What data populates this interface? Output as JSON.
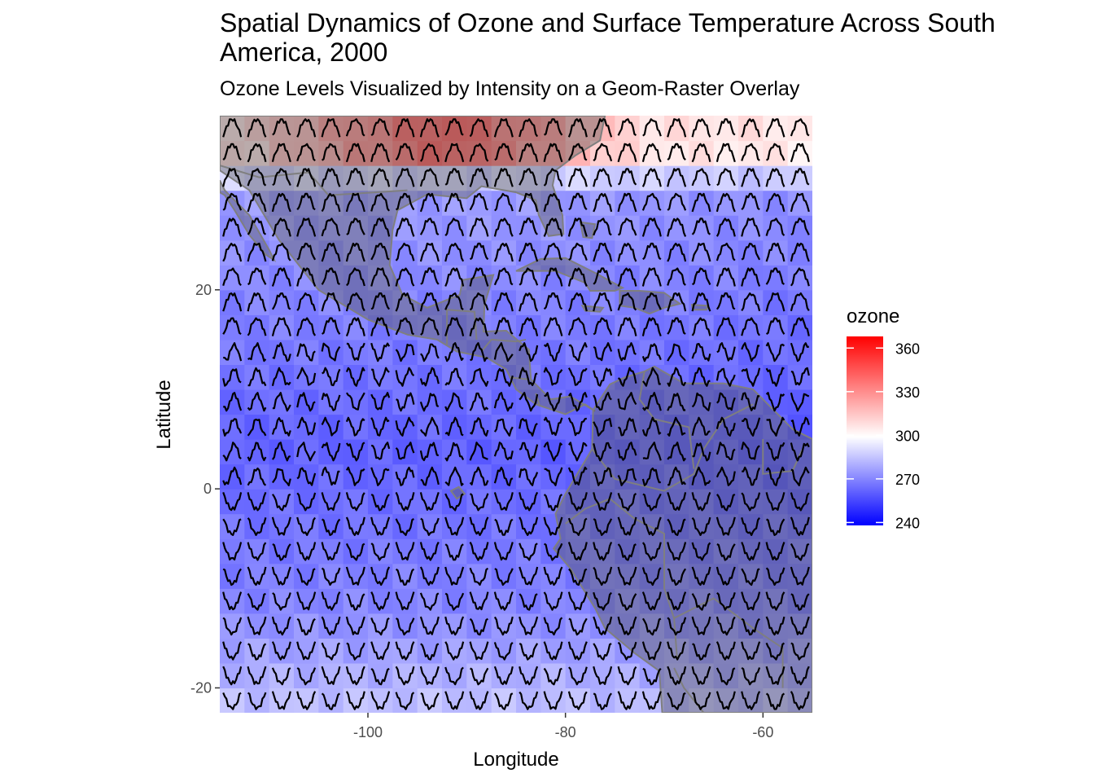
{
  "chart_data": {
    "type": "heatmap",
    "title": "Spatial Dynamics of Ozone and Surface Temperature Across South America, 2000",
    "subtitle": "Ozone Levels Visualized by Intensity on a Geom-Raster Overlay",
    "xlabel": "Longitude",
    "ylabel": "Latitude",
    "xlim": [
      -115,
      -55
    ],
    "ylim": [
      -22.5,
      37.5
    ],
    "x_ticks": [
      -100,
      -80,
      -60
    ],
    "x_tick_labels": [
      "-100",
      "-80",
      "-60"
    ],
    "y_ticks": [
      -20,
      0,
      20
    ],
    "y_tick_labels": [
      "-20",
      "0",
      "20"
    ],
    "grid": "off",
    "legend": {
      "title": "ozone",
      "placement": "right",
      "breaks": [
        240,
        270,
        300,
        330,
        360
      ],
      "labels": [
        "360",
        "330",
        "300",
        "270",
        "240"
      ],
      "range": [
        238,
        368
      ],
      "colors": {
        "low": "#0000ff",
        "mid": "#ffffff",
        "high": "#ff0000"
      },
      "midpoint": 300
    },
    "grid_x": {
      "start": -113.75,
      "step": 2.5,
      "count": 24
    },
    "grid_y": {
      "start": -21.25,
      "step": 2.5,
      "count": 24
    },
    "temperature_glyphs": "sparkline per cell, monthly series",
    "overlay": "country outlines"
  }
}
